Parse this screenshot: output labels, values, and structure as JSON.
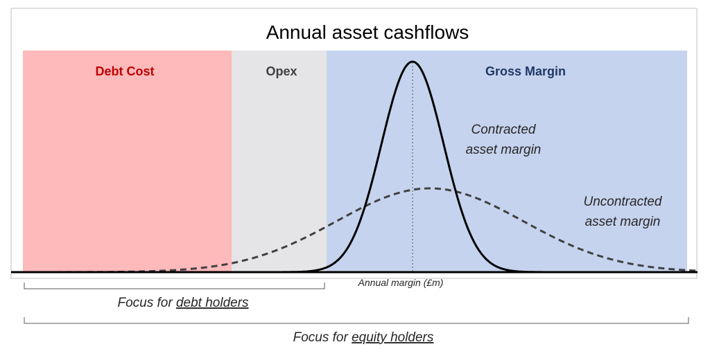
{
  "title": "Annual asset cashflows",
  "zones": {
    "debt_cost": {
      "label": "Debt Cost",
      "fill": "#feb9bb",
      "text_color": "#c00000"
    },
    "opex": {
      "label": "Opex",
      "fill": "#e5e4e6",
      "text_color": "#404040"
    },
    "gross_margin": {
      "label": "Gross Margin",
      "fill": "#c5d3ee",
      "text_color": "#1f3864"
    }
  },
  "curves": {
    "contracted": {
      "label_line1": "Contracted",
      "label_line2": "asset margin",
      "style": "solid"
    },
    "uncontracted": {
      "label_line1": "Uncontracted",
      "label_line2": "asset margin",
      "style": "dashed"
    }
  },
  "axis_label": "Annual margin (£m)",
  "focus": {
    "debt": {
      "prefix": "Focus for ",
      "underlined": "debt holders"
    },
    "equity": {
      "prefix": "Focus for ",
      "underlined": "equity holders"
    }
  },
  "colors": {
    "curve": "#000000",
    "dashed_curve": "#404040",
    "frame": "#bfbfbf"
  }
}
